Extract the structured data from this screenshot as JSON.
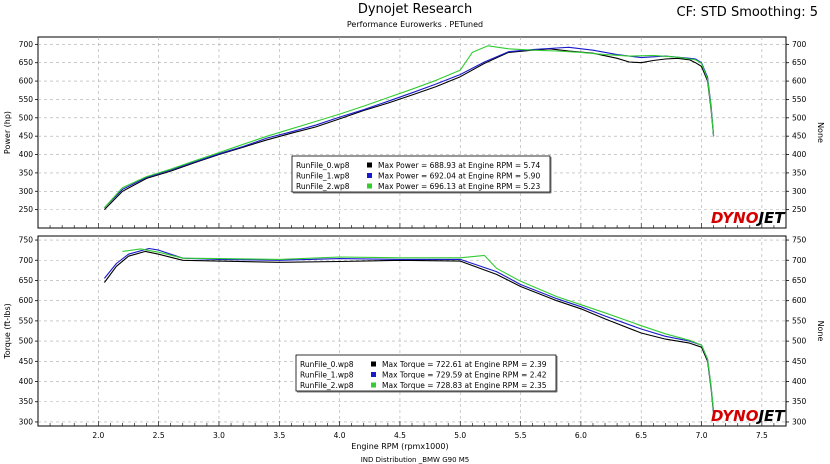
{
  "header": {
    "title": "Dynojet Research",
    "subtitle": "Performance Eurowerks . PETuned",
    "cf_info": "CF: STD Smoothing: 5"
  },
  "footer": {
    "text": "IND Distribution _BMW G90 M5"
  },
  "logo": {
    "text_red": "DYNO",
    "text_black": "JET"
  },
  "colors": {
    "run0": "#000000",
    "run1": "#1a1acc",
    "run2": "#33cc33",
    "grid": "#aaaaaa",
    "logo_red": "#d40000"
  },
  "chart_data": [
    {
      "type": "line",
      "ylabel": "Power (hp)",
      "ylabel_right": "None",
      "xlim": [
        1.5,
        7.7
      ],
      "ylim": [
        200,
        720
      ],
      "yticks": [
        250,
        300,
        350,
        400,
        450,
        500,
        550,
        600,
        650,
        700
      ],
      "grid": true,
      "legend_placement": "center",
      "legend": [
        {
          "file": "RunFile_0.wp8",
          "text": "Max Power = 688.93 at Engine RPM = 5.74"
        },
        {
          "file": "RunFile_1.wp8",
          "text": "Max Power = 692.04 at Engine RPM = 5.90"
        },
        {
          "file": "RunFile_2.wp8",
          "text": "Max Power = 696.13 at Engine RPM = 5.23"
        }
      ],
      "series": [
        {
          "name": "RunFile_0.wp8",
          "x": [
            2.05,
            2.2,
            2.4,
            2.6,
            2.8,
            3.0,
            3.2,
            3.4,
            3.6,
            3.8,
            4.0,
            4.2,
            4.4,
            4.6,
            4.8,
            5.0,
            5.2,
            5.4,
            5.6,
            5.74,
            5.9,
            6.1,
            6.3,
            6.4,
            6.5,
            6.6,
            6.7,
            6.8,
            6.9,
            6.95,
            7.0,
            7.05,
            7.08,
            7.1
          ],
          "y": [
            250,
            300,
            335,
            355,
            378,
            400,
            420,
            440,
            458,
            475,
            497,
            520,
            540,
            562,
            585,
            612,
            648,
            678,
            684,
            688,
            682,
            676,
            662,
            652,
            650,
            656,
            660,
            662,
            658,
            650,
            640,
            600,
            520,
            450
          ]
        },
        {
          "name": "RunFile_1.wp8",
          "x": [
            2.05,
            2.2,
            2.4,
            2.6,
            2.8,
            3.0,
            3.2,
            3.4,
            3.6,
            3.8,
            4.0,
            4.2,
            4.4,
            4.6,
            4.8,
            5.0,
            5.2,
            5.4,
            5.6,
            5.8,
            5.9,
            6.1,
            6.3,
            6.5,
            6.7,
            6.9,
            6.95,
            7.0,
            7.05,
            7.08,
            7.1
          ],
          "y": [
            255,
            305,
            338,
            358,
            380,
            402,
            422,
            445,
            462,
            480,
            502,
            522,
            545,
            568,
            592,
            618,
            652,
            680,
            686,
            690,
            692,
            684,
            672,
            664,
            668,
            662,
            660,
            650,
            610,
            530,
            450
          ]
        },
        {
          "name": "RunFile_2.wp8",
          "x": [
            2.05,
            2.2,
            2.4,
            2.6,
            2.8,
            3.0,
            3.2,
            3.4,
            3.6,
            3.8,
            4.0,
            4.2,
            4.4,
            4.6,
            4.8,
            5.0,
            5.1,
            5.23,
            5.4,
            5.6,
            5.8,
            6.0,
            6.2,
            6.4,
            6.6,
            6.8,
            6.9,
            6.95,
            7.0,
            7.05,
            7.08,
            7.1
          ],
          "y": [
            255,
            310,
            340,
            360,
            383,
            405,
            428,
            450,
            470,
            490,
            510,
            532,
            555,
            578,
            602,
            630,
            678,
            696,
            688,
            684,
            682,
            678,
            672,
            668,
            670,
            665,
            660,
            658,
            648,
            605,
            525,
            450
          ]
        }
      ]
    },
    {
      "type": "line",
      "ylabel": "Torque (ft-lbs)",
      "ylabel_right": "None",
      "xlabel": "Engine RPM (rpmx1000)",
      "xlim": [
        1.5,
        7.7
      ],
      "ylim": [
        290,
        760
      ],
      "xticks": [
        "2.0",
        "2.5",
        "3.0",
        "3.5",
        "4.0",
        "4.5",
        "5.0",
        "5.5",
        "6.0",
        "6.5",
        "7.0",
        "7.5"
      ],
      "yticks": [
        300,
        350,
        400,
        450,
        500,
        550,
        600,
        650,
        700,
        750
      ],
      "grid": true,
      "legend_placement": "bottom-center",
      "legend": [
        {
          "file": "RunFile_0.wp8",
          "text": "Max Torque = 722.61 at Engine RPM = 2.39"
        },
        {
          "file": "RunFile_1.wp8",
          "text": "Max Torque = 729.59 at Engine RPM = 2.42"
        },
        {
          "file": "RunFile_2.wp8",
          "text": "Max Torque = 728.83 at Engine RPM = 2.35"
        }
      ],
      "series": [
        {
          "name": "RunFile_0.wp8",
          "x": [
            2.05,
            2.15,
            2.25,
            2.39,
            2.5,
            2.7,
            3.0,
            3.5,
            4.0,
            4.5,
            5.0,
            5.3,
            5.5,
            5.8,
            6.0,
            6.2,
            6.5,
            6.7,
            6.9,
            7.0,
            7.05,
            7.08,
            7.1
          ],
          "y": [
            645,
            685,
            710,
            722,
            715,
            700,
            698,
            695,
            697,
            700,
            698,
            665,
            635,
            600,
            580,
            555,
            520,
            505,
            495,
            485,
            450,
            380,
            320
          ]
        },
        {
          "name": "RunFile_1.wp8",
          "x": [
            2.05,
            2.15,
            2.25,
            2.42,
            2.5,
            2.7,
            3.0,
            3.5,
            4.0,
            4.5,
            5.0,
            5.3,
            5.5,
            5.8,
            6.0,
            6.2,
            6.5,
            6.7,
            6.9,
            7.0,
            7.05,
            7.08,
            7.1
          ],
          "y": [
            655,
            692,
            715,
            729,
            725,
            705,
            702,
            700,
            704,
            702,
            702,
            672,
            640,
            605,
            585,
            562,
            530,
            512,
            500,
            490,
            455,
            385,
            325
          ]
        },
        {
          "name": "RunFile_2.wp8",
          "x": [
            2.2,
            2.35,
            2.5,
            2.7,
            3.0,
            3.5,
            4.0,
            4.5,
            5.0,
            5.2,
            5.3,
            5.5,
            5.8,
            6.0,
            6.2,
            6.5,
            6.7,
            6.9,
            7.0,
            7.05,
            7.08,
            7.1
          ],
          "y": [
            722,
            728,
            720,
            705,
            704,
            702,
            708,
            706,
            706,
            712,
            680,
            648,
            610,
            590,
            570,
            538,
            518,
            502,
            490,
            455,
            385,
            325
          ]
        }
      ]
    }
  ]
}
